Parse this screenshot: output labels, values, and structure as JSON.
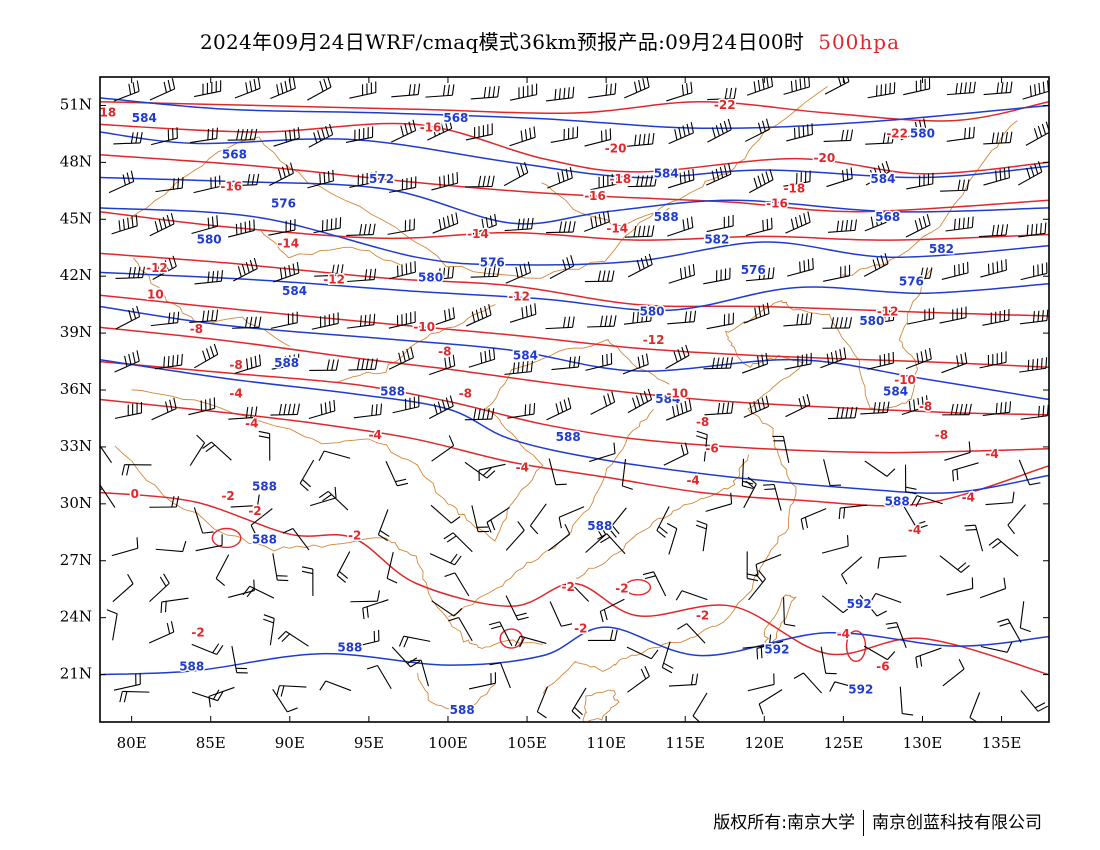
{
  "title": {
    "main": "2024年09月24日WRF/cmaq模式36km预报产品:09月24日00时",
    "level": "500hpa"
  },
  "credit": {
    "copyright": "版权所有:南京大学",
    "company": "南京创蓝科技有限公司"
  },
  "colors": {
    "height_contour": "#1e3ccf",
    "temperature_contour": "#e0282a",
    "coastline_border": "#d2883a",
    "wind_barb": "#000000"
  },
  "axes": {
    "lat_labels": [
      "51N",
      "48N",
      "45N",
      "42N",
      "39N",
      "36N",
      "33N",
      "30N",
      "27N",
      "24N",
      "21N"
    ],
    "lon_labels": [
      "80E",
      "85E",
      "90E",
      "95E",
      "100E",
      "105E",
      "110E",
      "115E",
      "120E",
      "125E",
      "130E",
      "135E"
    ],
    "lat_values": [
      51,
      48,
      45,
      42,
      39,
      36,
      33,
      30,
      27,
      24,
      21
    ],
    "lon_values": [
      80,
      85,
      90,
      95,
      100,
      105,
      110,
      115,
      120,
      125,
      130,
      135
    ],
    "lon_range": [
      78,
      138
    ],
    "lat_range": [
      18.5,
      52.5
    ]
  },
  "height_contours": [
    {
      "value": "584",
      "lon": [
        78,
        86,
        96,
        106,
        116,
        126,
        138
      ],
      "lat": [
        51.4,
        50.8,
        50.6,
        50.3,
        49.8,
        50.1,
        51
      ]
    },
    {
      "value": "568",
      "lon": [
        78,
        84,
        94,
        104,
        112,
        120,
        130,
        138
      ],
      "lat": [
        49.6,
        49,
        49.2,
        48,
        47.2,
        47.6,
        47.2,
        47.8
      ]
    },
    {
      "value": "572",
      "lon": [
        78,
        86,
        96,
        104,
        110,
        118,
        128,
        138
      ],
      "lat": [
        47.2,
        47,
        46.6,
        44.8,
        45.4,
        46,
        45.4,
        45.6
      ]
    },
    {
      "value": "576",
      "lon": [
        78,
        88,
        98,
        104,
        112,
        120,
        128,
        138
      ],
      "lat": [
        45.6,
        45.1,
        43,
        42.6,
        42.8,
        43.8,
        43,
        43.6
      ]
    },
    {
      "value": "580",
      "lon": [
        78,
        88,
        98,
        106,
        114,
        122,
        130,
        138
      ],
      "lat": [
        42.2,
        41.8,
        41.2,
        40.8,
        40.2,
        41.4,
        41.1,
        41.6
      ]
    },
    {
      "value": "584",
      "lon": [
        78,
        86,
        96,
        104,
        112,
        122,
        130,
        138
      ],
      "lat": [
        40.4,
        39.4,
        38.7,
        38.1,
        37,
        37.6,
        36.6,
        35.5
      ]
    },
    {
      "value": "588",
      "lon": [
        78,
        86,
        94,
        100,
        104,
        110,
        118,
        126,
        132,
        138
      ],
      "lat": [
        37.6,
        36.6,
        35.8,
        35,
        33.4,
        32.3,
        31.4,
        30.8,
        30.6,
        31.5
      ]
    },
    {
      "value": "588",
      "lon": [
        78,
        84,
        92,
        100,
        106,
        110,
        116,
        124,
        132,
        138
      ],
      "lat": [
        21,
        21.2,
        22.1,
        21.5,
        22,
        23.5,
        22,
        23.2,
        22.5,
        23
      ]
    }
  ],
  "temperature_contours": [
    {
      "value": "-22",
      "lon": [
        78,
        88,
        98,
        108,
        116,
        124,
        132,
        138
      ],
      "lat": [
        51.2,
        51,
        50.8,
        50.6,
        51.2,
        50.6,
        50.2,
        51.2
      ]
    },
    {
      "value": "-18",
      "lon": [
        78,
        88,
        98,
        106,
        112,
        122,
        130,
        138
      ],
      "lat": [
        50,
        49.6,
        50,
        48.2,
        47.5,
        48.2,
        47.4,
        48
      ]
    },
    {
      "value": "-16",
      "lon": [
        78,
        88,
        96,
        104,
        110,
        118,
        126,
        138
      ],
      "lat": [
        48.4,
        47.8,
        47.1,
        46.5,
        46.2,
        45.9,
        45.4,
        46
      ]
    },
    {
      "value": "-14",
      "lon": [
        78,
        86,
        96,
        104,
        112,
        120,
        128,
        138
      ],
      "lat": [
        45.4,
        44.6,
        44,
        44.3,
        43.9,
        44.1,
        43.9,
        44.2
      ]
    },
    {
      "value": "-12",
      "lon": [
        78,
        86,
        96,
        104,
        112,
        120,
        130,
        138
      ],
      "lat": [
        43.2,
        42.7,
        41.9,
        41.5,
        40.5,
        40.4,
        40.1,
        39.9
      ]
    },
    {
      "value": "-10",
      "lon": [
        78,
        86,
        96,
        104,
        112,
        120,
        130,
        138
      ],
      "lat": [
        41,
        40.3,
        39.5,
        38.9,
        38.2,
        37.8,
        37.5,
        37.2
      ]
    },
    {
      "value": "-8",
      "lon": [
        78,
        86,
        94,
        100,
        108,
        116,
        124,
        132,
        138
      ],
      "lat": [
        39.3,
        38.6,
        37.7,
        37.1,
        36.2,
        35.5,
        35.1,
        34.8,
        34.7
      ]
    },
    {
      "value": "-6",
      "lon": [
        78,
        86,
        94,
        100,
        106,
        112,
        120,
        128,
        138
      ],
      "lat": [
        37.5,
        36.9,
        36.3,
        35.4,
        34.2,
        33.4,
        32.9,
        32.7,
        32.9
      ]
    },
    {
      "value": "-4",
      "lon": [
        78,
        86,
        92,
        98,
        104,
        110,
        116,
        122,
        130,
        138
      ],
      "lat": [
        35.5,
        34.8,
        34.2,
        33.4,
        32.2,
        31.4,
        30.6,
        30.2,
        30,
        32
      ]
    },
    {
      "value": "-2",
      "lon": [
        78,
        84,
        90,
        94,
        98,
        104,
        108,
        112,
        118,
        124,
        130,
        138
      ],
      "lat": [
        30.6,
        30.1,
        28.4,
        28.2,
        25.8,
        24.6,
        25.8,
        24.1,
        24.6,
        22.1,
        22.9,
        21
      ]
    }
  ],
  "wind_barbs": {
    "lon_step": 2.5,
    "lat_step": 2.4,
    "note_north": "westerly",
    "note_south": "variable"
  },
  "map_annotations": [
    {
      "text": "584",
      "kind": "hgt",
      "lon": 80.8,
      "lat": 50.3
    },
    {
      "text": "568",
      "kind": "hgt",
      "lon": 100.5,
      "lat": 50.3
    },
    {
      "text": "568",
      "kind": "hgt",
      "lon": 86.5,
      "lat": 48.4
    },
    {
      "text": "572",
      "kind": "hgt",
      "lon": 95.8,
      "lat": 47.1
    },
    {
      "text": "584",
      "kind": "hgt",
      "lon": 113.8,
      "lat": 47.4
    },
    {
      "text": "588",
      "kind": "hgt",
      "lon": 113.8,
      "lat": 45.1
    },
    {
      "text": "584",
      "kind": "hgt",
      "lon": 127.5,
      "lat": 47.1
    },
    {
      "text": "568",
      "kind": "hgt",
      "lon": 127.8,
      "lat": 45.1
    },
    {
      "text": "580",
      "kind": "hgt",
      "lon": 130,
      "lat": 49.5
    },
    {
      "text": "576",
      "kind": "hgt",
      "lon": 89.6,
      "lat": 45.8
    },
    {
      "text": "580",
      "kind": "hgt",
      "lon": 84.9,
      "lat": 43.9
    },
    {
      "text": "576",
      "kind": "hgt",
      "lon": 102.8,
      "lat": 42.7
    },
    {
      "text": "582",
      "kind": "hgt",
      "lon": 117,
      "lat": 43.9
    },
    {
      "text": "576",
      "kind": "hgt",
      "lon": 119.3,
      "lat": 42.3
    },
    {
      "text": "582",
      "kind": "hgt",
      "lon": 131.2,
      "lat": 43.4
    },
    {
      "text": "580",
      "kind": "hgt",
      "lon": 98.9,
      "lat": 41.9
    },
    {
      "text": "576",
      "kind": "hgt",
      "lon": 129.3,
      "lat": 41.7
    },
    {
      "text": "584",
      "kind": "hgt",
      "lon": 90.3,
      "lat": 41.2
    },
    {
      "text": "580",
      "kind": "hgt",
      "lon": 112.9,
      "lat": 40.1
    },
    {
      "text": "580",
      "kind": "hgt",
      "lon": 126.8,
      "lat": 39.6
    },
    {
      "text": "584",
      "kind": "hgt",
      "lon": 104.9,
      "lat": 37.8
    },
    {
      "text": "588",
      "kind": "hgt",
      "lon": 89.8,
      "lat": 37.4
    },
    {
      "text": "588",
      "kind": "hgt",
      "lon": 96.5,
      "lat": 35.9
    },
    {
      "text": "584",
      "kind": "hgt",
      "lon": 113.9,
      "lat": 35.5
    },
    {
      "text": "584",
      "kind": "hgt",
      "lon": 128.3,
      "lat": 35.9
    },
    {
      "text": "588",
      "kind": "hgt",
      "lon": 107.6,
      "lat": 33.5
    },
    {
      "text": "588",
      "kind": "hgt",
      "lon": 88.4,
      "lat": 30.9
    },
    {
      "text": "588",
      "kind": "hgt",
      "lon": 128.4,
      "lat": 30.1
    },
    {
      "text": "588",
      "kind": "hgt",
      "lon": 88.4,
      "lat": 28.1
    },
    {
      "text": "588",
      "kind": "hgt",
      "lon": 109.6,
      "lat": 28.8
    },
    {
      "text": "588",
      "kind": "hgt",
      "lon": 93.8,
      "lat": 22.4
    },
    {
      "text": "588",
      "kind": "hgt",
      "lon": 83.8,
      "lat": 21.4
    },
    {
      "text": "588",
      "kind": "hgt",
      "lon": 100.9,
      "lat": 19.1
    },
    {
      "text": "592",
      "kind": "hgt",
      "lon": 126,
      "lat": 24.7
    },
    {
      "text": "592",
      "kind": "hgt",
      "lon": 120.8,
      "lat": 22.3
    },
    {
      "text": "592",
      "kind": "hgt",
      "lon": 126.1,
      "lat": 20.2
    },
    {
      "text": "18",
      "kind": "tmp",
      "lon": 78.5,
      "lat": 50.6
    },
    {
      "text": "-22",
      "kind": "tmp",
      "lon": 117.5,
      "lat": 51
    },
    {
      "text": "-22",
      "kind": "tmp",
      "lon": 128.4,
      "lat": 49.5
    },
    {
      "text": "-16",
      "kind": "tmp",
      "lon": 98.9,
      "lat": 49.8
    },
    {
      "text": "-20",
      "kind": "tmp",
      "lon": 110.6,
      "lat": 48.7
    },
    {
      "text": "-20",
      "kind": "tmp",
      "lon": 123.8,
      "lat": 48.2
    },
    {
      "text": "-18",
      "kind": "tmp",
      "lon": 110.9,
      "lat": 47.1
    },
    {
      "text": "-16",
      "kind": "tmp",
      "lon": 86.3,
      "lat": 46.7
    },
    {
      "text": "-16",
      "kind": "tmp",
      "lon": 109.3,
      "lat": 46.2
    },
    {
      "text": "-18",
      "kind": "tmp",
      "lon": 121.9,
      "lat": 46.6
    },
    {
      "text": "-16",
      "kind": "tmp",
      "lon": 120.8,
      "lat": 45.8
    },
    {
      "text": "-14",
      "kind": "tmp",
      "lon": 89.9,
      "lat": 43.7
    },
    {
      "text": "-14",
      "kind": "tmp",
      "lon": 101.9,
      "lat": 44.2
    },
    {
      "text": "-14",
      "kind": "tmp",
      "lon": 110.7,
      "lat": 44.5
    },
    {
      "text": "-12",
      "kind": "tmp",
      "lon": 81.6,
      "lat": 42.4
    },
    {
      "text": "-12",
      "kind": "tmp",
      "lon": 92.8,
      "lat": 41.8
    },
    {
      "text": "-12",
      "kind": "tmp",
      "lon": 104.5,
      "lat": 40.9
    },
    {
      "text": "-12",
      "kind": "tmp",
      "lon": 127.8,
      "lat": 40.1
    },
    {
      "text": "-12",
      "kind": "tmp",
      "lon": 113,
      "lat": 38.6
    },
    {
      "text": "10",
      "kind": "tmp",
      "lon": 81.5,
      "lat": 41
    },
    {
      "text": "-8",
      "kind": "tmp",
      "lon": 84.1,
      "lat": 39.2
    },
    {
      "text": "-10",
      "kind": "tmp",
      "lon": 98.5,
      "lat": 39.3
    },
    {
      "text": "-8",
      "kind": "tmp",
      "lon": 99.8,
      "lat": 38
    },
    {
      "text": "-8",
      "kind": "tmp",
      "lon": 86.6,
      "lat": 37.3
    },
    {
      "text": "-4",
      "kind": "tmp",
      "lon": 86.6,
      "lat": 35.8
    },
    {
      "text": "-8",
      "kind": "tmp",
      "lon": 101.1,
      "lat": 35.8
    },
    {
      "text": "-10",
      "kind": "tmp",
      "lon": 114.5,
      "lat": 35.8
    },
    {
      "text": "-10",
      "kind": "tmp",
      "lon": 128.9,
      "lat": 36.5
    },
    {
      "text": "-4",
      "kind": "tmp",
      "lon": 87.6,
      "lat": 34.2
    },
    {
      "text": "-8",
      "kind": "tmp",
      "lon": 130.2,
      "lat": 35.1
    },
    {
      "text": "-8",
      "kind": "tmp",
      "lon": 116.1,
      "lat": 34.3
    },
    {
      "text": "-8",
      "kind": "tmp",
      "lon": 131.2,
      "lat": 33.6
    },
    {
      "text": "-4",
      "kind": "tmp",
      "lon": 95.4,
      "lat": 33.6
    },
    {
      "text": "-6",
      "kind": "tmp",
      "lon": 116.7,
      "lat": 32.9
    },
    {
      "text": "-4",
      "kind": "tmp",
      "lon": 134.4,
      "lat": 32.6
    },
    {
      "text": "-4",
      "kind": "tmp",
      "lon": 104.7,
      "lat": 31.9
    },
    {
      "text": "-4",
      "kind": "tmp",
      "lon": 115.5,
      "lat": 31.2
    },
    {
      "text": "0",
      "kind": "tmp",
      "lon": 80.2,
      "lat": 30.5
    },
    {
      "text": "-4",
      "kind": "tmp",
      "lon": 132.9,
      "lat": 30.3
    },
    {
      "text": "-2",
      "kind": "tmp",
      "lon": 86.1,
      "lat": 30.4
    },
    {
      "text": "-2",
      "kind": "tmp",
      "lon": 87.8,
      "lat": 29.6
    },
    {
      "text": "-2",
      "kind": "tmp",
      "lon": 94.1,
      "lat": 28.3
    },
    {
      "text": "-4",
      "kind": "tmp",
      "lon": 129.5,
      "lat": 28.6
    },
    {
      "text": "-2",
      "kind": "tmp",
      "lon": 107.6,
      "lat": 25.6
    },
    {
      "text": "-2",
      "kind": "tmp",
      "lon": 111,
      "lat": 25.5
    },
    {
      "text": "-2",
      "kind": "tmp",
      "lon": 108.4,
      "lat": 23.4
    },
    {
      "text": "-2",
      "kind": "tmp",
      "lon": 116.1,
      "lat": 24.1
    },
    {
      "text": "-2",
      "kind": "tmp",
      "lon": 84.2,
      "lat": 23.2
    },
    {
      "text": "-4",
      "kind": "tmp",
      "lon": 125,
      "lat": 23.1
    },
    {
      "text": "-6",
      "kind": "tmp",
      "lon": 127.5,
      "lat": 21.4
    }
  ]
}
